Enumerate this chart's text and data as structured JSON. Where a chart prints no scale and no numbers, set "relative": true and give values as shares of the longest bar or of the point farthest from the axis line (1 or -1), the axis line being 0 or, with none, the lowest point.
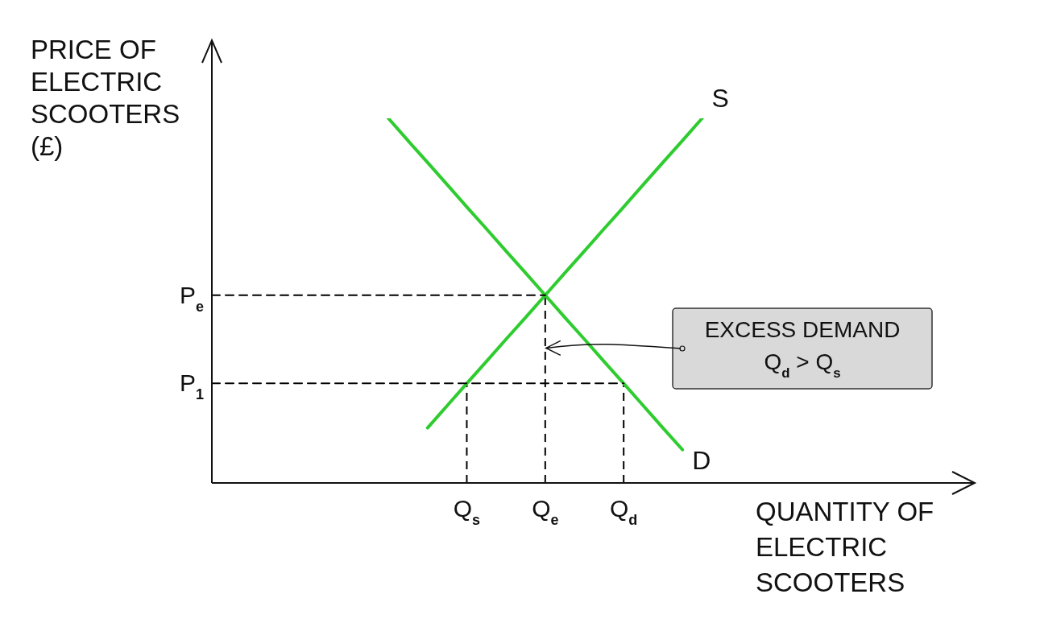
{
  "chart_data": {
    "type": "line",
    "relative": true,
    "xlabel": "QUANTITY OF ELECTRIC SCOOTERS",
    "ylabel": "PRICE OF ELECTRIC SCOOTERS (£)",
    "categories": [
      null,
      null,
      null,
      null,
      null,
      null,
      null,
      null,
      null,
      null,
      null,
      null,
      null,
      "Q$_{s}$",
      null,
      null,
      null,
      "Q$_{e}$",
      null,
      null,
      null,
      "Q$_{d}$",
      null,
      null,
      null,
      null,
      null,
      null,
      null,
      null,
      null,
      null,
      null,
      null,
      null,
      null,
      null,
      null,
      null
    ],
    "series": [
      {
        "name": "S",
        "color": "#2ecc2e",
        "values": [
          null,
          null,
          null,
          null,
          null,
          null,
          null,
          null,
          null,
          null,
          null,
          0.151,
          0.212,
          0.273,
          0.333,
          0.394,
          0.454,
          0.515,
          0.576,
          0.636,
          0.697,
          0.757,
          0.818,
          0.879,
          0.939,
          1,
          null,
          null,
          null,
          null,
          null,
          null,
          null,
          null,
          null,
          null,
          null,
          null,
          null
        ]
      },
      {
        "name": "D",
        "color": "#2ecc2e",
        "values": [
          null,
          null,
          null,
          null,
          null,
          null,
          null,
          null,
          null,
          1,
          0.939,
          0.879,
          0.818,
          0.757,
          0.697,
          0.636,
          0.576,
          0.515,
          0.454,
          0.394,
          0.333,
          0.273,
          0.212,
          0.151,
          0.091,
          null,
          null,
          null,
          null,
          null,
          null,
          null,
          null,
          null,
          null,
          null,
          null,
          null,
          null
        ]
      },
      {
        "name": "P$_{e}$",
        "color": "#000000",
        "line_style": "dashed",
        "values": [
          0.515,
          0.515,
          0.515,
          0.515,
          0.515,
          0.515,
          0.515,
          0.515,
          0.515,
          0.515,
          0.515,
          0.515,
          0.515,
          0.515,
          0.515,
          0.515,
          0.515,
          0.515,
          null,
          null,
          null,
          null,
          null,
          null,
          null,
          null,
          null,
          null,
          null,
          null,
          null,
          null,
          null,
          null,
          null,
          null,
          null,
          null,
          null
        ]
      },
      {
        "name": "P$_{1}$",
        "color": "#000000",
        "line_style": "dashed",
        "values": [
          0.273,
          0.273,
          0.273,
          0.273,
          0.273,
          0.273,
          0.273,
          0.273,
          0.273,
          0.273,
          0.273,
          0.273,
          0.273,
          0.273,
          0.273,
          0.273,
          0.273,
          0.273,
          0.273,
          0.273,
          0.273,
          0.273,
          null,
          null,
          null,
          null,
          null,
          null,
          null,
          null,
          null,
          null,
          null,
          null,
          null,
          null,
          null,
          null,
          null
        ]
      }
    ],
    "ref_lines": [
      {
        "axis": "x",
        "value": "Q$_{s}$",
        "color": "#000000",
        "line_style": "dashed"
      },
      {
        "axis": "x",
        "value": "Q$_{e}$",
        "color": "#000000",
        "line_style": "dashed"
      },
      {
        "axis": "x",
        "value": "Q$_{d}$",
        "color": "#000000",
        "line_style": "dashed"
      }
    ],
    "annotations": [
      {
        "text": "EXCESS DEMAND\nQ$_{d}$ > Q$_{s}$",
        "x": "Q$_{e}$",
        "y": 0.37
      }
    ],
    "grid": false,
    "legend": false,
    "marker": "none"
  }
}
